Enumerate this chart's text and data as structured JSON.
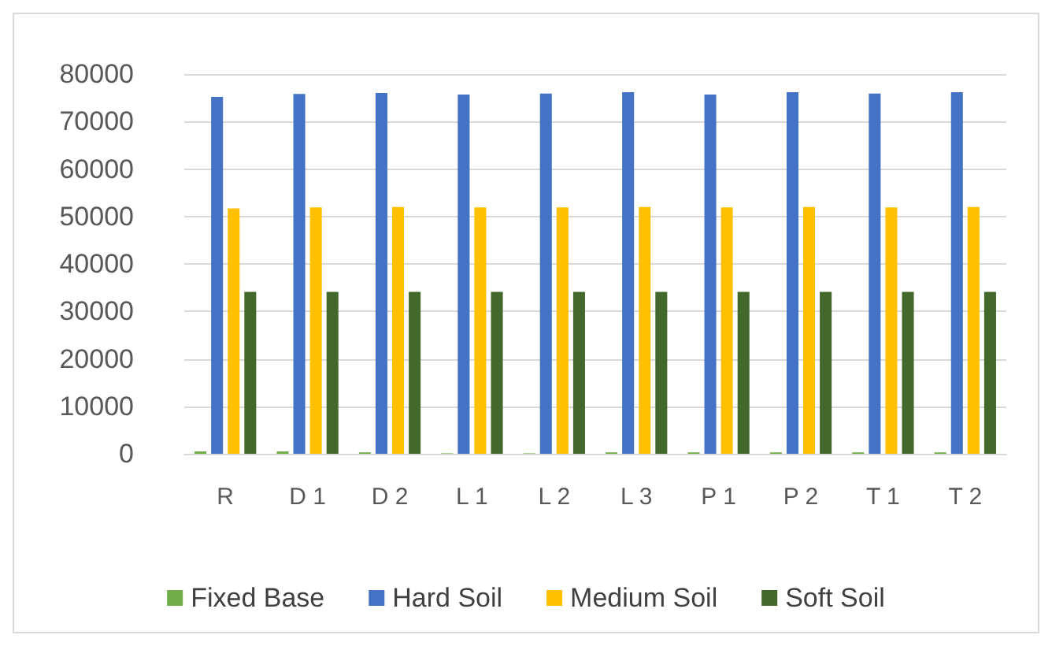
{
  "chart_data": {
    "type": "bar",
    "categories": [
      "R",
      "D 1",
      "D 2",
      "L 1",
      "L 2",
      "L 3",
      "P 1",
      "P 2",
      "T 1",
      "T 2"
    ],
    "series": [
      {
        "name": "Fixed Base",
        "color": "#70ad47",
        "values": [
          500,
          500,
          300,
          100,
          100,
          300,
          300,
          300,
          300,
          300
        ]
      },
      {
        "name": "Hard Soil",
        "color": "#4472c4",
        "values": [
          75200,
          75800,
          76000,
          75700,
          75900,
          76200,
          75700,
          76200,
          75900,
          76200
        ]
      },
      {
        "name": "Medium Soil",
        "color": "#ffc000",
        "values": [
          51700,
          51900,
          52000,
          51900,
          51900,
          52000,
          51900,
          52000,
          51900,
          52000
        ]
      },
      {
        "name": "Soft Soil",
        "color": "#43682b",
        "values": [
          34100,
          34100,
          34100,
          34100,
          34100,
          34100,
          34100,
          34100,
          34100,
          34100
        ]
      }
    ],
    "ylim": [
      0,
      80000
    ],
    "yticks": [
      0,
      10000,
      20000,
      30000,
      40000,
      50000,
      60000,
      70000,
      80000
    ],
    "grid": "y",
    "legend": "bottom"
  }
}
